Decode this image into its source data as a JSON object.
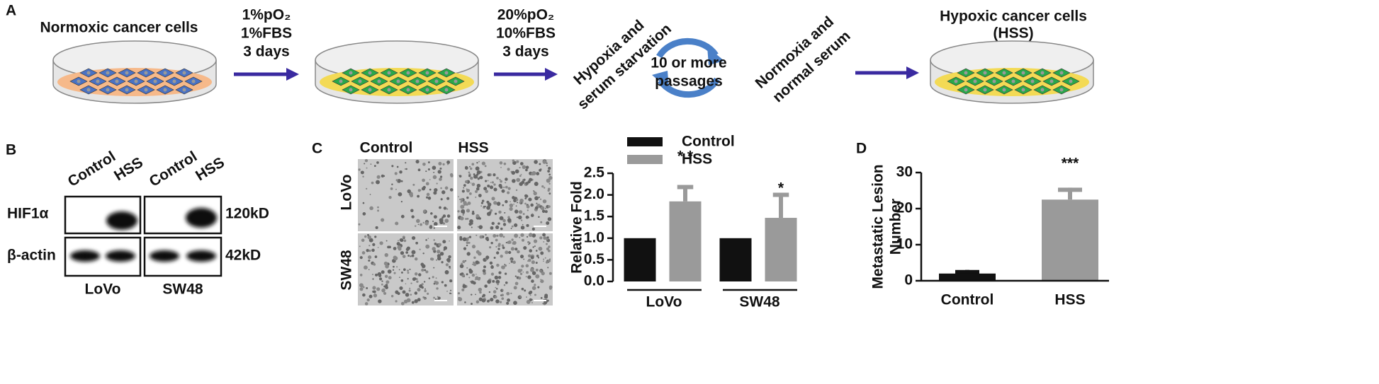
{
  "panel_a": {
    "label": "A",
    "start": "Normoxic cancer cells",
    "step1": [
      "1%pO₂",
      "1%FBS",
      "3 days"
    ],
    "step2": [
      "20%pO₂",
      "10%FBS",
      "3 days"
    ],
    "hypoxia": [
      "Hypoxia and",
      "serum starvation"
    ],
    "cycle": [
      "10 or more",
      "passages"
    ],
    "normoxia": [
      "Normoxia and",
      "normal serum"
    ],
    "result": [
      "Hypoxic cancer cells",
      "(HSS)"
    ]
  },
  "panel_b": {
    "label": "B",
    "lanes": [
      "Control",
      "HSS",
      "Control",
      "HSS"
    ],
    "proteins": [
      "HIF1α",
      "β-actin"
    ],
    "sizes": [
      "120kD",
      "42kD"
    ],
    "cell_lines": [
      "LoVo",
      "SW48"
    ]
  },
  "panel_c_images": {
    "label": "C",
    "columns": [
      "Control",
      "HSS"
    ],
    "rows": [
      "LoVo",
      "SW48"
    ]
  },
  "panel_d": {
    "label": "D"
  },
  "chart_data": [
    {
      "type": "bar",
      "y_label": "Relative Fold",
      "categories": [
        "LoVo",
        "SW48"
      ],
      "series": [
        {
          "name": "Control",
          "color": "#111111",
          "values": [
            1.0,
            1.0
          ]
        },
        {
          "name": "HSS",
          "color": "#9a9a9a",
          "values": [
            1.85,
            1.47
          ],
          "errors": [
            0.38,
            0.58
          ]
        }
      ],
      "ylim": [
        0,
        2.5
      ],
      "yticks": [
        {
          "value": 0,
          "label": "0.0"
        },
        0.5,
        {
          "value": 1,
          "label": "1.0"
        },
        1.5,
        {
          "value": 2,
          "label": "2.0"
        },
        2.5
      ],
      "annotations": [
        "* *",
        "*"
      ]
    },
    {
      "type": "bar",
      "y_label": [
        "Metastatic Lesion",
        "Number"
      ],
      "categories": [
        "Control",
        "HSS"
      ],
      "values": [
        2,
        22.5
      ],
      "errors": [
        1,
        3.3
      ],
      "colors": [
        "#111111",
        "#9a9a9a"
      ],
      "ylim": [
        0,
        30
      ],
      "yticks": [
        0,
        10,
        20,
        30
      ],
      "annotations": [
        "***"
      ]
    }
  ]
}
